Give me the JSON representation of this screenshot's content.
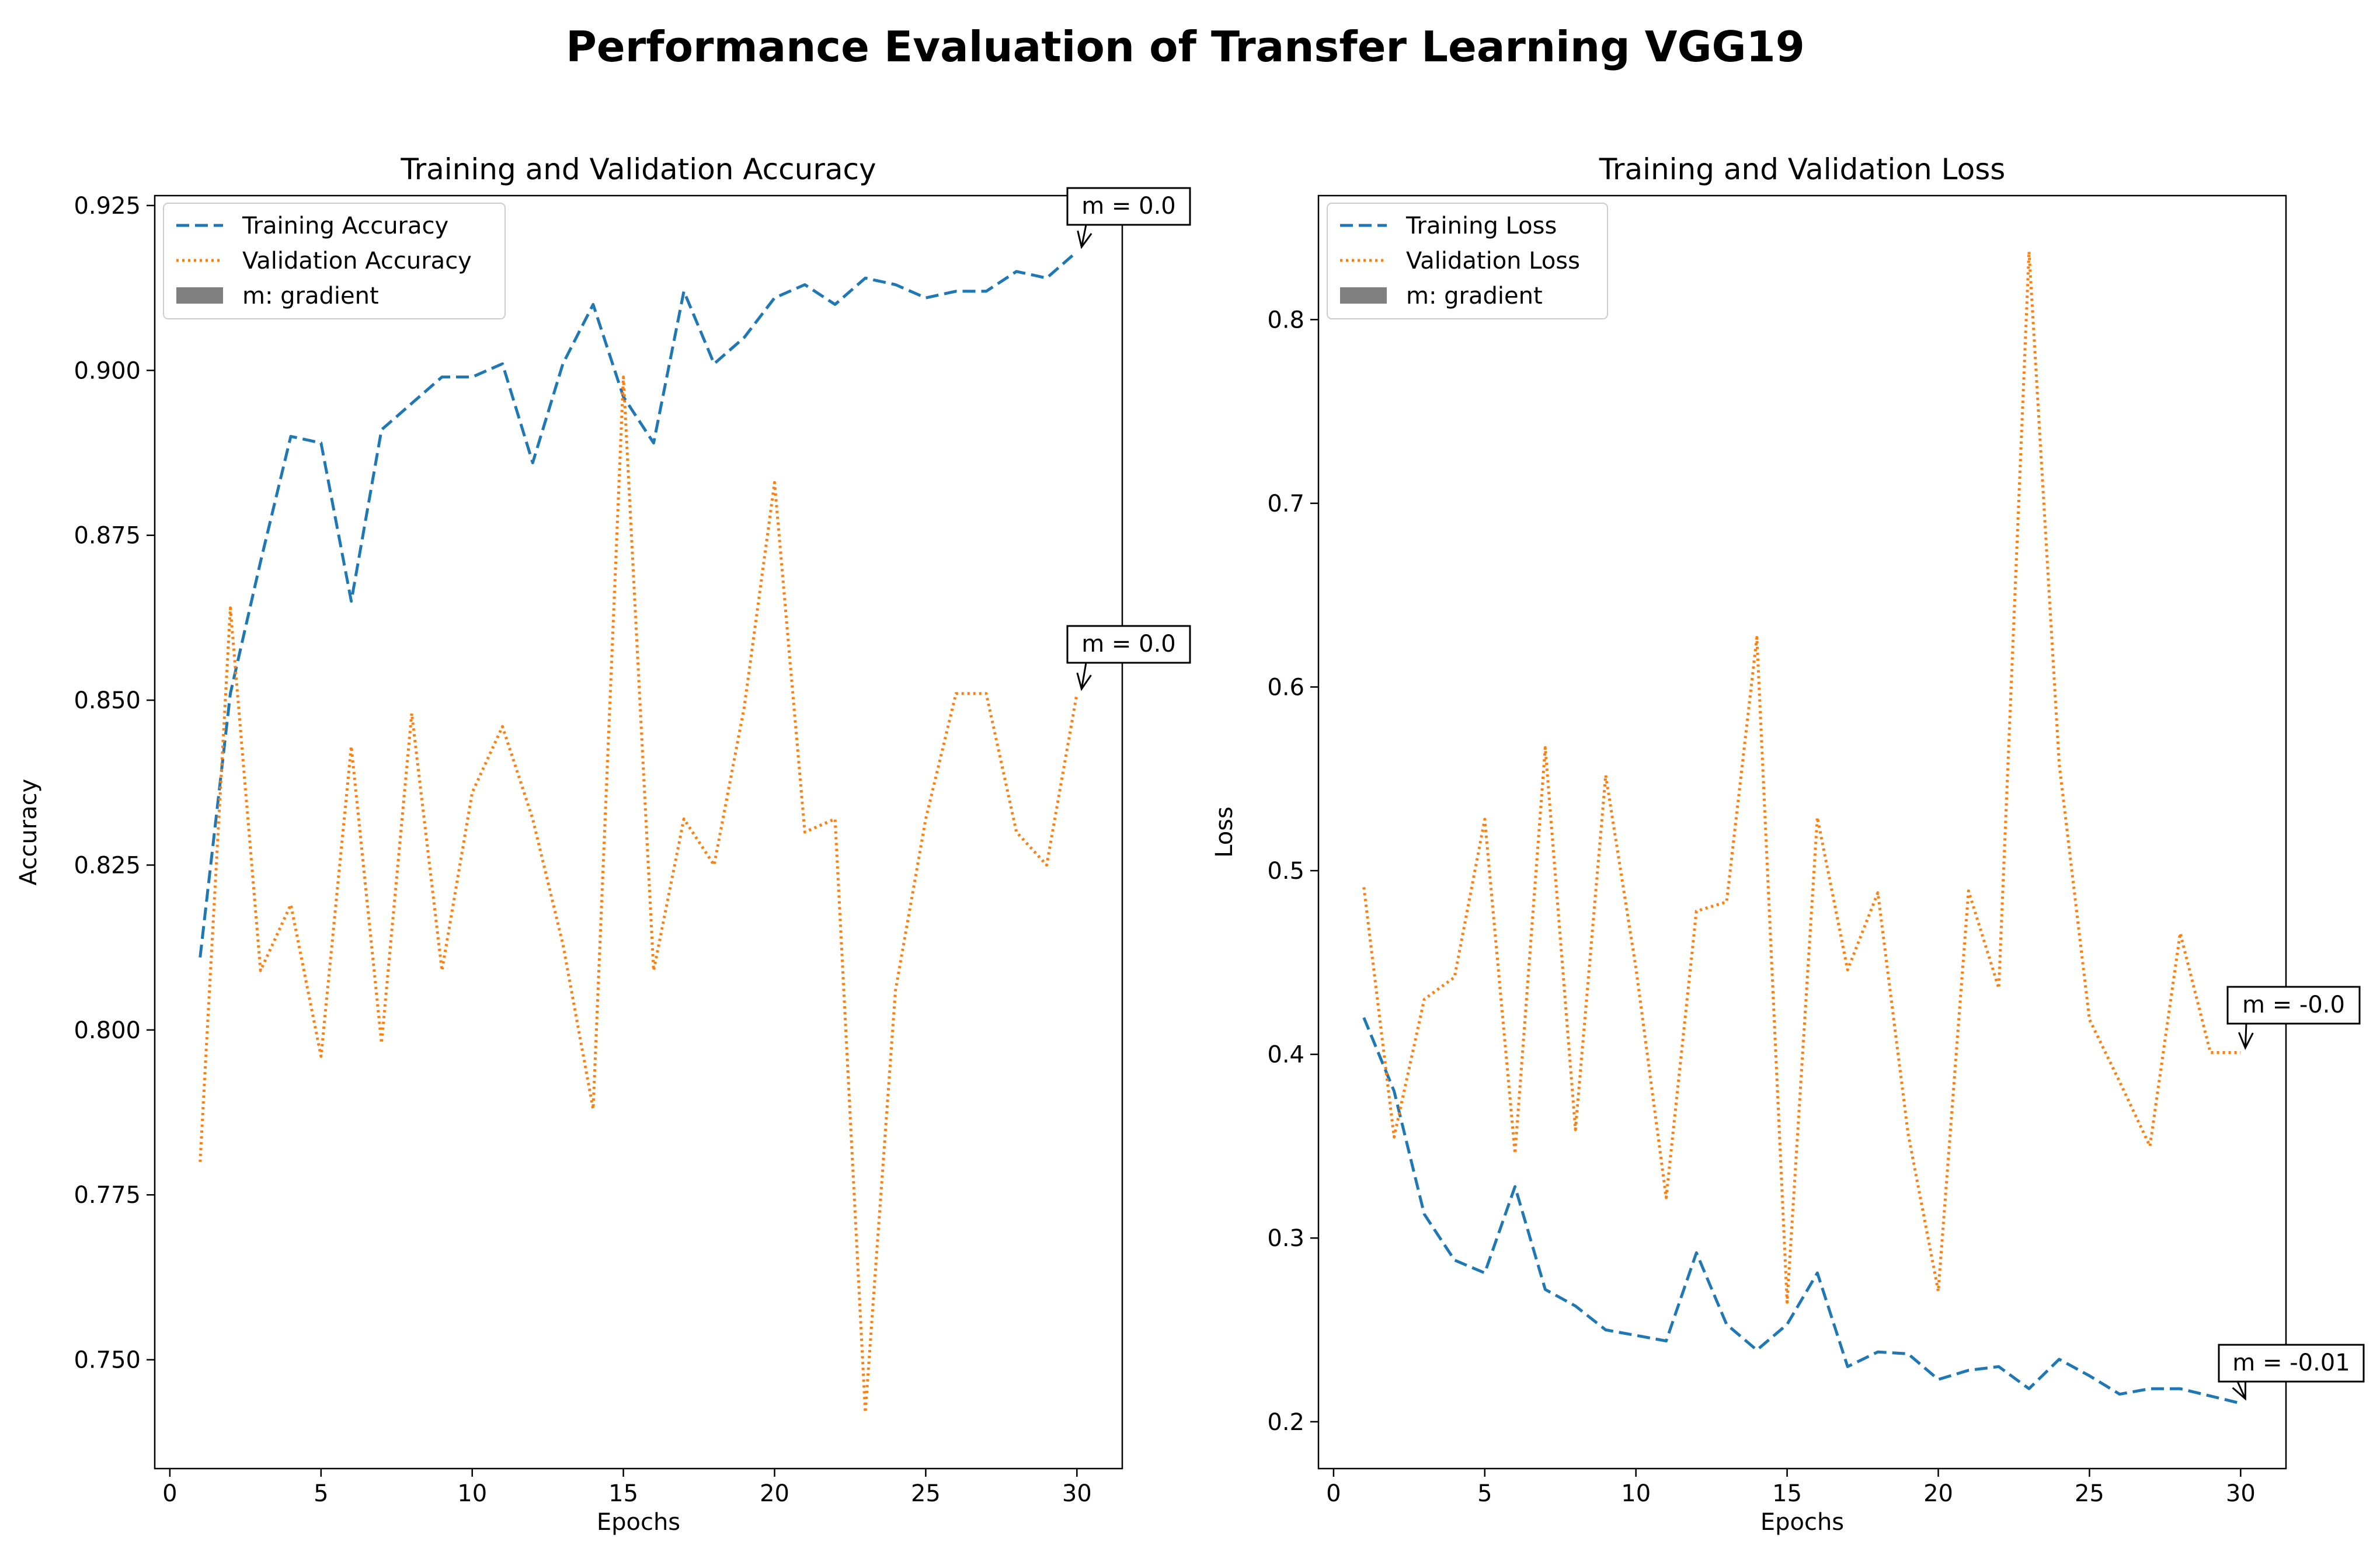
{
  "figure": {
    "suptitle": "Performance Evaluation of Transfer Learning VGG19"
  },
  "colors": {
    "training": "#1f77b4",
    "validation": "#ff7f0e",
    "gradient_patch": "#808080"
  },
  "chart_data": [
    {
      "type": "line",
      "title": "Training and Validation Accuracy",
      "xlabel": "Epochs",
      "ylabel": "Accuracy",
      "xlim": [
        -0.5,
        31.5
      ],
      "ylim": [
        0.7335,
        0.9265
      ],
      "xticks": [
        0,
        5,
        10,
        15,
        20,
        25,
        30
      ],
      "yticks": [
        0.75,
        0.775,
        0.8,
        0.825,
        0.85,
        0.875,
        0.9,
        0.925
      ],
      "ytick_labels": [
        "0.750",
        "0.775",
        "0.800",
        "0.825",
        "0.850",
        "0.875",
        "0.900",
        "0.925"
      ],
      "x": [
        1,
        2,
        3,
        4,
        5,
        6,
        7,
        8,
        9,
        10,
        11,
        12,
        13,
        14,
        15,
        16,
        17,
        18,
        19,
        20,
        21,
        22,
        23,
        24,
        25,
        26,
        27,
        28,
        29,
        30
      ],
      "series": [
        {
          "name": "Training Accuracy",
          "style": "dashed",
          "color_key": "training",
          "values": [
            0.811,
            0.851,
            0.871,
            0.89,
            0.889,
            0.865,
            0.891,
            0.895,
            0.899,
            0.899,
            0.901,
            0.886,
            0.901,
            0.91,
            0.896,
            0.889,
            0.912,
            0.901,
            0.905,
            0.911,
            0.913,
            0.91,
            0.914,
            0.913,
            0.911,
            0.912,
            0.912,
            0.915,
            0.914,
            0.918
          ]
        },
        {
          "name": "Validation Accuracy",
          "style": "dotted",
          "color_key": "validation",
          "values": [
            0.78,
            0.864,
            0.809,
            0.819,
            0.796,
            0.843,
            0.798,
            0.848,
            0.809,
            0.836,
            0.846,
            0.832,
            0.813,
            0.788,
            0.899,
            0.809,
            0.832,
            0.825,
            0.849,
            0.883,
            0.83,
            0.832,
            0.742,
            0.806,
            0.832,
            0.851,
            0.851,
            0.83,
            0.825,
            0.851
          ]
        }
      ],
      "legend": {
        "position": "upper-left",
        "entries": [
          "Training Accuracy",
          "Validation Accuracy",
          "m: gradient"
        ]
      },
      "annotations": [
        {
          "text": "m = 0.0",
          "x": 30,
          "y": 0.918
        },
        {
          "text": "m = 0.0",
          "x": 30,
          "y": 0.851
        }
      ]
    },
    {
      "type": "line",
      "title": "Training and Validation Loss",
      "xlabel": "Epochs",
      "ylabel": "Loss",
      "xlim": [
        -0.5,
        31.5
      ],
      "ylim": [
        0.1745,
        0.8675
      ],
      "xticks": [
        0,
        5,
        10,
        15,
        20,
        25,
        30
      ],
      "yticks": [
        0.2,
        0.3,
        0.4,
        0.5,
        0.6,
        0.7,
        0.8
      ],
      "ytick_labels": [
        "0.2",
        "0.3",
        "0.4",
        "0.5",
        "0.6",
        "0.7",
        "0.8"
      ],
      "x": [
        1,
        2,
        3,
        4,
        5,
        6,
        7,
        8,
        9,
        10,
        11,
        12,
        13,
        14,
        15,
        16,
        17,
        18,
        19,
        20,
        21,
        22,
        23,
        24,
        25,
        26,
        27,
        28,
        29,
        30
      ],
      "series": [
        {
          "name": "Training Loss",
          "style": "dashed",
          "color_key": "training",
          "values": [
            0.42,
            0.38,
            0.313,
            0.288,
            0.281,
            0.328,
            0.272,
            0.263,
            0.25,
            0.247,
            0.244,
            0.292,
            0.253,
            0.239,
            0.253,
            0.281,
            0.23,
            0.238,
            0.237,
            0.223,
            0.228,
            0.23,
            0.218,
            0.234,
            0.225,
            0.215,
            0.218,
            0.218,
            0.214,
            0.21
          ]
        },
        {
          "name": "Validation Loss",
          "style": "dotted",
          "color_key": "validation",
          "values": [
            0.491,
            0.355,
            0.43,
            0.442,
            0.528,
            0.346,
            0.567,
            0.359,
            0.552,
            0.447,
            0.322,
            0.478,
            0.483,
            0.627,
            0.265,
            0.529,
            0.446,
            0.488,
            0.357,
            0.271,
            0.489,
            0.436,
            0.837,
            0.558,
            0.419,
            0.385,
            0.35,
            0.466,
            0.401,
            0.401
          ]
        }
      ],
      "legend": {
        "position": "upper-left",
        "entries": [
          "Training Loss",
          "Validation Loss",
          "m: gradient"
        ]
      },
      "annotations": [
        {
          "text": "m = -0.0",
          "x": 30,
          "y": 0.401
        },
        {
          "text": "m = -0.01",
          "x": 30,
          "y": 0.21
        }
      ]
    }
  ]
}
